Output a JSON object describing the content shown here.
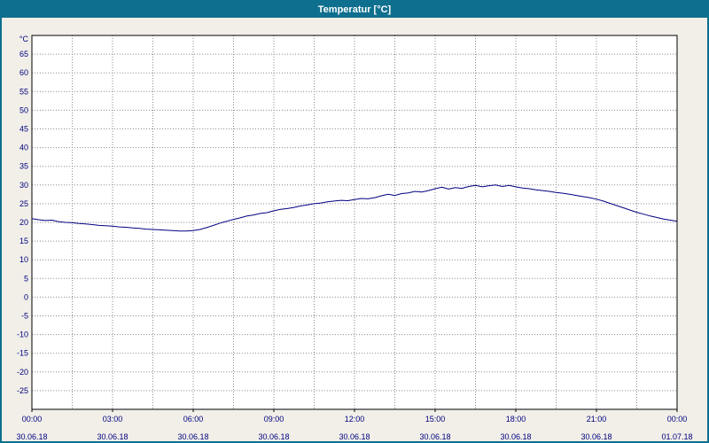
{
  "window": {
    "title": "Temperatur [°C]",
    "titlebar_color": "#0e6f8e",
    "background_color": "#f1efe8"
  },
  "chart_data": {
    "type": "line",
    "title": "Temperatur [°C]",
    "y_unit_label": "°C",
    "ylim": [
      -30,
      70
    ],
    "y_ticks": [
      65,
      60,
      55,
      50,
      45,
      40,
      35,
      30,
      25,
      20,
      15,
      10,
      5,
      0,
      -5,
      -10,
      -15,
      -20,
      -25
    ],
    "xlim_hours": [
      0,
      24
    ],
    "x_minor_step_hours": 1.5,
    "x_major_ticks": [
      {
        "hour": 0,
        "time": "00:00",
        "date": "30.06.18"
      },
      {
        "hour": 3,
        "time": "03:00",
        "date": "30.06.18"
      },
      {
        "hour": 6,
        "time": "06:00",
        "date": "30.06.18"
      },
      {
        "hour": 9,
        "time": "09:00",
        "date": "30.06.18"
      },
      {
        "hour": 12,
        "time": "12:00",
        "date": "30.06.18"
      },
      {
        "hour": 15,
        "time": "15:00",
        "date": "30.06.18"
      },
      {
        "hour": 18,
        "time": "18:00",
        "date": "30.06.18"
      },
      {
        "hour": 21,
        "time": "21:00",
        "date": "30.06.18"
      },
      {
        "hour": 24,
        "time": "00:00",
        "date": "01.07.18"
      }
    ],
    "grid": true,
    "grid_color": "#8a8a8a",
    "line_color": "#000080",
    "label_color": "#000080",
    "plot_background": "#ffffff",
    "plot_border_color": "#000000",
    "legend_position": "none",
    "series": [
      {
        "name": "Temperatur",
        "x_hours": [
          0,
          0.25,
          0.5,
          0.75,
          1,
          1.25,
          1.5,
          1.75,
          2,
          2.25,
          2.5,
          2.75,
          3,
          3.25,
          3.5,
          3.75,
          4,
          4.25,
          4.5,
          4.75,
          5,
          5.25,
          5.5,
          5.75,
          6,
          6.25,
          6.5,
          6.75,
          7,
          7.25,
          7.5,
          7.75,
          8,
          8.25,
          8.5,
          8.75,
          9,
          9.25,
          9.5,
          9.75,
          10,
          10.25,
          10.5,
          10.75,
          11,
          11.25,
          11.5,
          11.75,
          12,
          12.25,
          12.5,
          12.75,
          13,
          13.25,
          13.5,
          13.75,
          14,
          14.25,
          14.5,
          14.75,
          15,
          15.25,
          15.5,
          15.75,
          16,
          16.25,
          16.5,
          16.75,
          17,
          17.25,
          17.5,
          17.75,
          18,
          18.25,
          18.5,
          18.75,
          19,
          19.25,
          19.5,
          19.75,
          20,
          20.25,
          20.5,
          20.75,
          21,
          21.25,
          21.5,
          21.75,
          22,
          22.25,
          22.5,
          22.75,
          23,
          23.25,
          23.5,
          23.75,
          24
        ],
        "values": [
          21.0,
          20.7,
          20.5,
          20.6,
          20.2,
          20.0,
          19.9,
          19.7,
          19.6,
          19.4,
          19.2,
          19.1,
          19.0,
          18.8,
          18.7,
          18.5,
          18.4,
          18.2,
          18.1,
          18.0,
          17.9,
          17.8,
          17.7,
          17.7,
          17.8,
          18.1,
          18.6,
          19.2,
          19.8,
          20.3,
          20.8,
          21.2,
          21.7,
          22.0,
          22.4,
          22.6,
          23.1,
          23.5,
          23.7,
          24.0,
          24.4,
          24.7,
          25.0,
          25.2,
          25.5,
          25.7,
          25.9,
          25.8,
          26.1,
          26.4,
          26.3,
          26.6,
          27.1,
          27.5,
          27.2,
          27.7,
          27.9,
          28.3,
          28.1,
          28.5,
          29.0,
          29.4,
          28.9,
          29.3,
          29.1,
          29.6,
          29.9,
          29.5,
          29.8,
          30.0,
          29.6,
          29.9,
          29.5,
          29.2,
          29.0,
          28.7,
          28.5,
          28.3,
          28.0,
          27.8,
          27.5,
          27.2,
          26.9,
          26.6,
          26.2,
          25.7,
          25.1,
          24.5,
          23.9,
          23.3,
          22.7,
          22.2,
          21.7,
          21.3,
          20.9,
          20.6,
          20.3
        ]
      }
    ]
  }
}
